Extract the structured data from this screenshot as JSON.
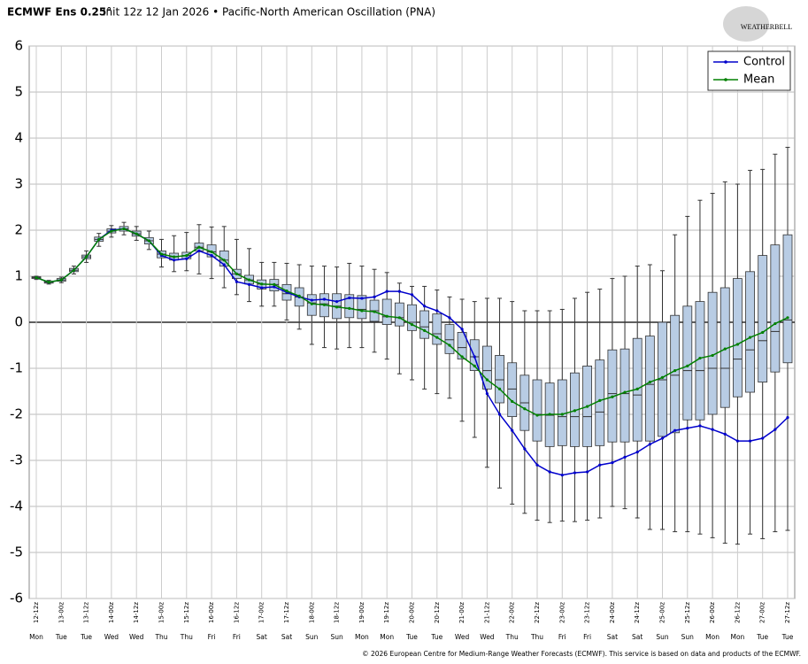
{
  "chart_data": {
    "type": "box",
    "title": "ECMWF Ens 0.25°",
    "subtitle": "Init 12z 12 Jan 2026 • Pacific-North American Oscillation (PNA)",
    "logo": "WEATHERBELL",
    "footer": "© 2026 European Centre for Medium-Range Weather Forecasts (ECMWF). This service is based on data and products of the ECMWF.",
    "categories": [
      "12-12z",
      null,
      "13-00z",
      null,
      "13-12z",
      null,
      "14-00z",
      null,
      "14-12z",
      null,
      "15-00z",
      null,
      "15-12z",
      null,
      "16-00z",
      null,
      "16-12z",
      null,
      "17-00z",
      null,
      "17-12z",
      null,
      "18-00z",
      null,
      "18-12z",
      null,
      "19-00z",
      null,
      "19-12z",
      null,
      "20-00z",
      null,
      "20-12z",
      null,
      "21-00z",
      null,
      "21-12z",
      null,
      "22-00z",
      null,
      "22-12z",
      null,
      "23-00z",
      null,
      "23-12z",
      null,
      "24-00z",
      null,
      "24-12z",
      null,
      "25-00z",
      null,
      "25-12z",
      null,
      "26-00z",
      null,
      "26-12z",
      null,
      "27-00z",
      null,
      "27-12z"
    ],
    "weekdays": [
      "Mon",
      null,
      "Tue",
      null,
      "Tue",
      null,
      "Wed",
      null,
      "Wed",
      null,
      "Thu",
      null,
      "Thu",
      null,
      "Fri",
      null,
      "Fri",
      null,
      "Sat",
      null,
      "Sat",
      null,
      "Sun",
      null,
      "Sun",
      null,
      "Mon",
      null,
      "Mon",
      null,
      "Tue",
      null,
      "Tue",
      null,
      "Wed",
      null,
      "Wed",
      null,
      "Thu",
      null,
      "Thu",
      null,
      "Fri",
      null,
      "Fri",
      null,
      "Sat",
      null,
      "Sat",
      null,
      "Sun",
      null,
      "Sun",
      null,
      "Mon",
      null,
      "Mon",
      null,
      "Tue",
      null,
      "Tue"
    ],
    "ylim": [
      -6,
      6
    ],
    "yticks": [
      -6,
      -5,
      -4,
      -3,
      -2,
      -1,
      0,
      1,
      2,
      3,
      4,
      5,
      6
    ],
    "grid": true,
    "legend": "upper right",
    "box_color": "#b8cce4",
    "boxes": {
      "whisker_low": [
        0.93,
        0.83,
        0.86,
        1.05,
        1.3,
        1.65,
        1.85,
        1.9,
        1.78,
        1.58,
        1.2,
        1.1,
        1.12,
        1.05,
        0.95,
        0.75,
        0.6,
        0.45,
        0.35,
        0.35,
        0.05,
        -0.15,
        -0.48,
        -0.55,
        -0.58,
        -0.55,
        -0.55,
        -0.65,
        -0.8,
        -1.12,
        -1.25,
        -1.45,
        -1.55,
        -1.65,
        -2.15,
        -2.5,
        -3.15,
        -3.6,
        -3.95,
        -4.15,
        -4.3,
        -4.35,
        -4.32,
        -4.33,
        -4.3,
        -4.25,
        -4,
        -4.05,
        -4.25,
        -4.5,
        -4.5,
        -4.55,
        -4.55,
        -4.6,
        -4.68,
        -4.8,
        -4.82,
        -4.6,
        -4.7,
        -4.55,
        -4.52
      ],
      "q1": [
        0.95,
        0.85,
        0.89,
        1.1,
        1.38,
        1.76,
        1.94,
        1.98,
        1.87,
        1.7,
        1.4,
        1.35,
        1.38,
        1.55,
        1.42,
        1.22,
        0.95,
        0.83,
        0.72,
        0.68,
        0.48,
        0.35,
        0.15,
        0.12,
        0.08,
        0.1,
        0.08,
        0.02,
        -0.05,
        -0.08,
        -0.18,
        -0.35,
        -0.48,
        -0.68,
        -0.8,
        -1.05,
        -1.45,
        -1.75,
        -2.05,
        -2.35,
        -2.58,
        -2.7,
        -2.68,
        -2.7,
        -2.7,
        -2.68,
        -2.6,
        -2.6,
        -2.58,
        -2.58,
        -2.48,
        -2.4,
        -2.12,
        -2.12,
        -2,
        -1.85,
        -1.62,
        -1.52,
        -1.3,
        -1.08,
        -0.88
      ],
      "median": [
        0.97,
        0.87,
        0.92,
        1.13,
        1.42,
        1.8,
        1.98,
        2.03,
        1.92,
        1.77,
        1.48,
        1.42,
        1.45,
        1.63,
        1.53,
        1.35,
        1.05,
        0.92,
        0.83,
        0.82,
        0.62,
        0.55,
        0.42,
        0.4,
        0.35,
        0.3,
        0.28,
        0.25,
        0.12,
        0.1,
        0,
        -0.1,
        -0.25,
        -0.38,
        -0.55,
        -0.75,
        -1.05,
        -1.25,
        -1.45,
        -1.75,
        -2,
        -2.02,
        -2.05,
        -2.05,
        -2.05,
        -1.95,
        -1.55,
        -1.55,
        -1.58,
        -1.35,
        -1.25,
        -1.15,
        -1.05,
        -1.05,
        -1,
        -1,
        -0.8,
        -0.6,
        -0.4,
        -0.2,
        0.05
      ],
      "q3": [
        0.99,
        0.89,
        0.95,
        1.17,
        1.46,
        1.85,
        2.03,
        2.08,
        1.98,
        1.84,
        1.55,
        1.5,
        1.52,
        1.72,
        1.68,
        1.55,
        1.15,
        1.02,
        0.92,
        0.93,
        0.82,
        0.75,
        0.6,
        0.62,
        0.62,
        0.6,
        0.58,
        0.48,
        0.5,
        0.42,
        0.38,
        0.25,
        0.18,
        -0.05,
        -0.22,
        -0.38,
        -0.52,
        -0.72,
        -0.88,
        -1.15,
        -1.25,
        -1.32,
        -1.25,
        -1.1,
        -0.95,
        -0.82,
        -0.6,
        -0.58,
        -0.35,
        -0.3,
        0,
        0.15,
        0.35,
        0.45,
        0.65,
        0.75,
        0.95,
        1.1,
        1.45,
        1.68,
        1.9
      ],
      "whisker_high": [
        1,
        0.91,
        0.98,
        1.22,
        1.55,
        1.93,
        2.1,
        2.17,
        2.08,
        1.98,
        1.8,
        1.88,
        1.95,
        2.12,
        2.07,
        2.08,
        1.8,
        1.6,
        1.3,
        1.3,
        1.28,
        1.25,
        1.22,
        1.22,
        1.2,
        1.28,
        1.22,
        1.15,
        1.08,
        0.85,
        0.78,
        0.78,
        0.7,
        0.55,
        0.5,
        0.45,
        0.52,
        0.52,
        0.45,
        0.25,
        0.25,
        0.25,
        0.28,
        0.52,
        0.65,
        0.72,
        0.95,
        1,
        1.22,
        1.25,
        1.12,
        1.9,
        2.3,
        2.65,
        2.8,
        3.05,
        3,
        3.3,
        3.32,
        3.65,
        3.8
      ]
    },
    "series": [
      {
        "name": "Control",
        "color": "#0000cc",
        "values": [
          0.97,
          0.87,
          0.92,
          1.13,
          1.42,
          1.8,
          2,
          2.03,
          1.92,
          1.77,
          1.45,
          1.35,
          1.38,
          1.55,
          1.45,
          1.25,
          0.88,
          0.82,
          0.75,
          0.77,
          0.65,
          0.55,
          0.48,
          0.5,
          0.45,
          0.53,
          0.52,
          0.55,
          0.67,
          0.67,
          0.6,
          0.35,
          0.25,
          0.1,
          -0.15,
          -0.75,
          -1.55,
          -2,
          -2.35,
          -2.75,
          -3.1,
          -3.25,
          -3.32,
          -3.27,
          -3.25,
          -3.1,
          -3.05,
          -2.93,
          -2.82,
          -2.65,
          -2.52,
          -2.35,
          -2.3,
          -2.25,
          -2.33,
          -2.43,
          -2.58,
          -2.58,
          -2.52,
          -2.33,
          -2.07
        ]
      },
      {
        "name": "Mean",
        "color": "#008000",
        "values": [
          0.97,
          0.87,
          0.92,
          1.13,
          1.42,
          1.8,
          1.98,
          2.03,
          1.92,
          1.77,
          1.48,
          1.42,
          1.45,
          1.63,
          1.53,
          1.35,
          1.05,
          0.92,
          0.83,
          0.82,
          0.68,
          0.57,
          0.4,
          0.38,
          0.33,
          0.3,
          0.25,
          0.23,
          0.13,
          0.1,
          -0.05,
          -0.18,
          -0.33,
          -0.5,
          -0.75,
          -0.95,
          -1.25,
          -1.45,
          -1.72,
          -1.88,
          -2.02,
          -2,
          -2,
          -1.92,
          -1.83,
          -1.7,
          -1.62,
          -1.52,
          -1.45,
          -1.3,
          -1.2,
          -1.05,
          -0.95,
          -0.78,
          -0.72,
          -0.58,
          -0.48,
          -0.33,
          -0.22,
          -0.03,
          0.1
        ]
      }
    ]
  }
}
